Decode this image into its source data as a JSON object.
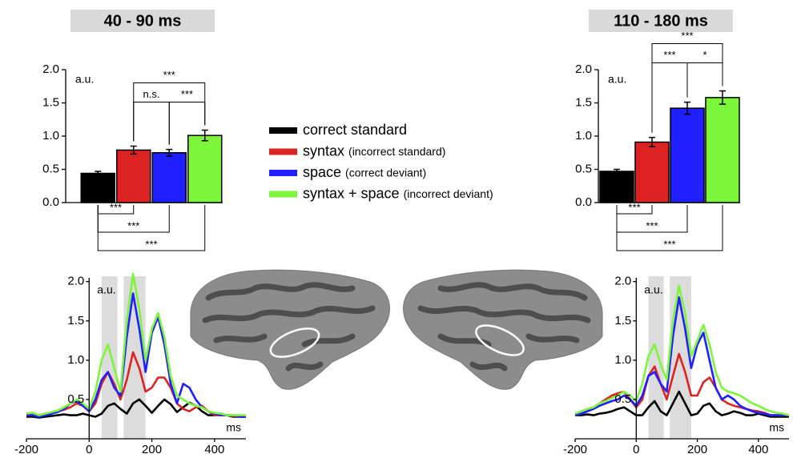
{
  "chart_data": [
    {
      "type": "bar",
      "title": "40 - 90 ms",
      "y_label": "a.u.",
      "categories": [
        null,
        null,
        null,
        null
      ],
      "values": [
        0.44,
        0.79,
        0.75,
        1.01
      ],
      "errors": [
        0.03,
        0.06,
        0.05,
        0.08
      ],
      "colors": [
        "#000000",
        "#dd2222",
        "#1f1fff",
        "#7cf53a"
      ],
      "ylim": [
        0,
        2
      ],
      "yticks": [
        {
          "value": 0,
          "label": "0.0"
        },
        0.5,
        {
          "value": 1,
          "label": "1.0"
        },
        1.5,
        {
          "value": 2,
          "label": "2.0"
        }
      ],
      "brackets": [
        {
          "between": [
            1,
            2
          ],
          "label": "n.s.",
          "side": "above"
        },
        {
          "between": [
            2,
            3
          ],
          "label": "***",
          "side": "above"
        },
        {
          "between": [
            1,
            3
          ],
          "label": "***",
          "side": "above"
        },
        {
          "between": [
            0,
            1
          ],
          "label": "***",
          "side": "below"
        },
        {
          "between": [
            0,
            2
          ],
          "label": "***",
          "side": "below"
        },
        {
          "between": [
            0,
            3
          ],
          "label": "***",
          "side": "below"
        }
      ]
    },
    {
      "type": "bar",
      "title": "110 - 180 ms",
      "y_label": "a.u.",
      "categories": [
        null,
        null,
        null,
        null
      ],
      "values": [
        0.47,
        0.91,
        1.42,
        1.58
      ],
      "errors": [
        0.03,
        0.07,
        0.09,
        0.1
      ],
      "colors": [
        "#000000",
        "#dd2222",
        "#1f1fff",
        "#7cf53a"
      ],
      "ylim": [
        0,
        2
      ],
      "yticks": [
        {
          "value": 0,
          "label": "0.0"
        },
        0.5,
        {
          "value": 1,
          "label": "1.0"
        },
        1.5,
        {
          "value": 2,
          "label": "2.0"
        }
      ],
      "brackets": [
        {
          "between": [
            1,
            2
          ],
          "label": "***",
          "side": "above"
        },
        {
          "between": [
            2,
            3
          ],
          "label": "*",
          "side": "above"
        },
        {
          "between": [
            1,
            3
          ],
          "label": "***",
          "side": "above"
        },
        {
          "between": [
            0,
            1
          ],
          "label": "***",
          "side": "below"
        },
        {
          "between": [
            0,
            2
          ],
          "label": "***",
          "side": "below"
        },
        {
          "between": [
            0,
            3
          ],
          "label": "***",
          "side": "below"
        }
      ]
    },
    {
      "type": "line",
      "y_label": "a.u.",
      "x_label": "ms",
      "x": [
        -200,
        -180,
        -160,
        -140,
        -120,
        -100,
        -80,
        -60,
        -40,
        -20,
        0,
        20,
        40,
        60,
        80,
        100,
        120,
        140,
        160,
        180,
        200,
        220,
        240,
        260,
        280,
        300,
        320,
        340,
        360,
        380,
        400,
        420,
        440,
        460,
        480,
        500
      ],
      "shaded_ranges": [
        [
          40,
          90
        ],
        [
          110,
          180
        ]
      ],
      "series": [
        {
          "color": "#000000",
          "values": [
            0.28,
            0.28,
            0.27,
            0.28,
            0.29,
            0.3,
            0.31,
            0.3,
            0.3,
            0.32,
            0.3,
            0.28,
            0.32,
            0.42,
            0.45,
            0.38,
            0.32,
            0.45,
            0.5,
            0.42,
            0.33,
            0.42,
            0.5,
            0.44,
            0.34,
            0.4,
            0.46,
            0.42,
            0.35,
            0.3,
            0.3,
            0.32,
            0.3,
            0.28,
            0.28,
            0.28
          ]
        },
        {
          "color": "#dd2222",
          "values": [
            0.3,
            0.31,
            0.3,
            0.32,
            0.33,
            0.35,
            0.37,
            0.4,
            0.45,
            0.42,
            0.35,
            0.45,
            0.7,
            0.85,
            0.7,
            0.5,
            0.75,
            1.1,
            0.9,
            0.6,
            0.65,
            0.78,
            0.78,
            0.65,
            0.45,
            0.38,
            0.35,
            0.4,
            0.42,
            0.35,
            0.3,
            0.3,
            0.3,
            0.29,
            0.28,
            0.28
          ]
        },
        {
          "color": "#1f1fff",
          "values": [
            0.3,
            0.3,
            0.28,
            0.3,
            0.32,
            0.34,
            0.38,
            0.45,
            0.48,
            0.42,
            0.35,
            0.5,
            0.75,
            0.85,
            0.65,
            0.55,
            1.3,
            1.85,
            1.4,
            0.85,
            1.35,
            1.55,
            1.2,
            0.7,
            0.45,
            0.7,
            0.65,
            0.5,
            0.4,
            0.35,
            0.32,
            0.3,
            0.3,
            0.3,
            0.28,
            0.28
          ]
        },
        {
          "color": "#7cf53a",
          "values": [
            0.32,
            0.33,
            0.3,
            0.32,
            0.34,
            0.36,
            0.4,
            0.45,
            0.5,
            0.45,
            0.38,
            0.6,
            1.0,
            1.2,
            0.9,
            0.6,
            1.5,
            2.1,
            1.65,
            1.0,
            1.4,
            1.6,
            1.3,
            0.8,
            0.55,
            0.5,
            0.45,
            0.42,
            0.4,
            0.35,
            0.33,
            0.32,
            0.3,
            0.3,
            0.3,
            0.3
          ]
        }
      ],
      "xlim": [
        -200,
        500
      ],
      "xticks": [
        -200,
        0,
        200,
        400
      ],
      "ylim": [
        0,
        2.15
      ],
      "yticks": [
        0.5,
        {
          "value": 1,
          "label": "1.0"
        },
        1.5,
        {
          "value": 2,
          "label": "2.0"
        }
      ]
    },
    {
      "type": "line",
      "y_label": "a.u.",
      "x_label": "ms",
      "x": [
        -200,
        -180,
        -160,
        -140,
        -120,
        -100,
        -80,
        -60,
        -40,
        -20,
        0,
        20,
        40,
        60,
        80,
        100,
        120,
        140,
        160,
        180,
        200,
        220,
        240,
        260,
        280,
        300,
        320,
        340,
        360,
        380,
        400,
        420,
        440,
        460,
        480,
        500
      ],
      "shaded_ranges": [
        [
          40,
          90
        ],
        [
          110,
          180
        ]
      ],
      "series": [
        {
          "color": "#000000",
          "values": [
            0.3,
            0.3,
            0.31,
            0.3,
            0.32,
            0.33,
            0.35,
            0.38,
            0.4,
            0.35,
            0.3,
            0.3,
            0.4,
            0.48,
            0.35,
            0.3,
            0.45,
            0.6,
            0.45,
            0.3,
            0.32,
            0.42,
            0.45,
            0.35,
            0.3,
            0.32,
            0.35,
            0.33,
            0.3,
            0.3,
            0.32,
            0.3,
            0.28,
            0.28,
            0.28,
            0.28
          ]
        },
        {
          "color": "#dd2222",
          "values": [
            0.3,
            0.32,
            0.35,
            0.4,
            0.45,
            0.5,
            0.55,
            0.58,
            0.6,
            0.5,
            0.4,
            0.5,
            0.8,
            0.92,
            0.7,
            0.5,
            0.8,
            1.08,
            0.85,
            0.55,
            0.55,
            0.72,
            0.78,
            0.65,
            0.5,
            0.45,
            0.42,
            0.4,
            0.38,
            0.36,
            0.35,
            0.33,
            0.3,
            0.3,
            0.3,
            0.3
          ]
        },
        {
          "color": "#1f1fff",
          "values": [
            0.3,
            0.32,
            0.35,
            0.38,
            0.42,
            0.45,
            0.48,
            0.5,
            0.55,
            0.5,
            0.42,
            0.55,
            0.8,
            0.85,
            0.7,
            0.6,
            1.3,
            1.8,
            1.4,
            0.9,
            1.2,
            1.35,
            1.0,
            0.65,
            0.5,
            0.55,
            0.5,
            0.42,
            0.38,
            0.35,
            0.33,
            0.32,
            0.3,
            0.3,
            0.3,
            0.3
          ]
        },
        {
          "color": "#7cf53a",
          "values": [
            0.32,
            0.35,
            0.38,
            0.4,
            0.45,
            0.48,
            0.52,
            0.55,
            0.6,
            0.55,
            0.48,
            0.7,
            1.05,
            1.2,
            0.95,
            0.75,
            1.5,
            1.95,
            1.6,
            1.05,
            1.25,
            1.45,
            1.2,
            0.85,
            0.65,
            0.6,
            0.58,
            0.55,
            0.5,
            0.45,
            0.42,
            0.38,
            0.35,
            0.33,
            0.32,
            0.3
          ]
        }
      ],
      "xlim": [
        -200,
        500
      ],
      "xticks": [
        -200,
        0,
        200,
        400
      ],
      "ylim": [
        0,
        2.15
      ],
      "yticks": [
        0.5,
        {
          "value": 1,
          "label": "1.0"
        },
        1.5,
        {
          "value": 2,
          "label": "2.0"
        }
      ]
    }
  ],
  "legend": {
    "entries": [
      {
        "name": "correct standard",
        "color": "#000000"
      },
      {
        "name": "syntax",
        "note": "(incorrect standard)",
        "color": "#dd2222"
      },
      {
        "name": "space",
        "note": "(correct deviant)",
        "color": "#1f1fff"
      },
      {
        "name": "syntax + space",
        "note": "(incorrect deviant)",
        "color": "#7cf53a"
      }
    ]
  }
}
